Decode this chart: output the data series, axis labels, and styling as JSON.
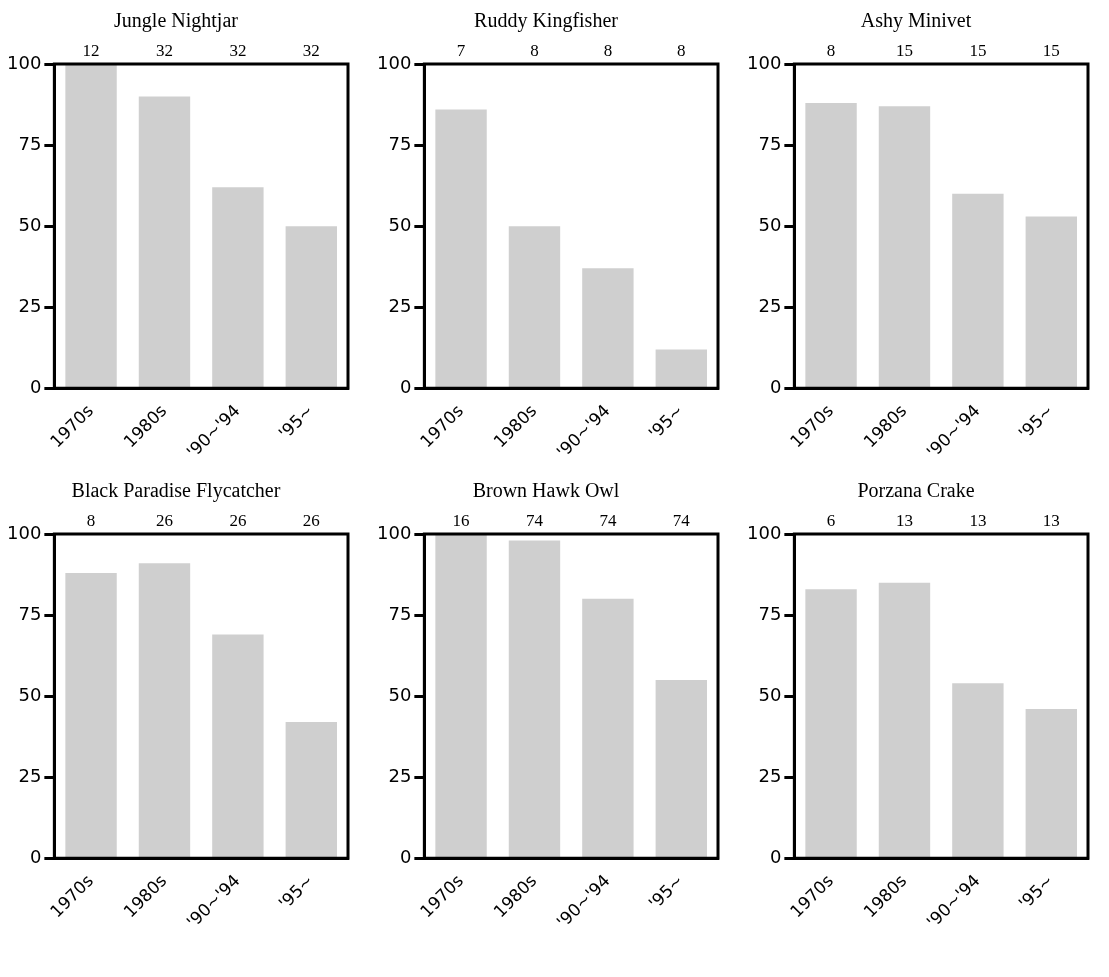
{
  "chart_data": [
    {
      "type": "bar",
      "title": "Jungle Nightjar",
      "categories": [
        "1970s",
        "1980s",
        "'90~'94",
        "'95~"
      ],
      "values": [
        100,
        90,
        62,
        50
      ],
      "color": "#cfcfcf",
      "ylim": [
        0,
        100
      ],
      "yticks": [
        0,
        25,
        50,
        75,
        100
      ],
      "grid": false,
      "legend": false,
      "annotations": [
        "12",
        "32",
        "32",
        "32"
      ]
    },
    {
      "type": "bar",
      "title": "Ruddy Kingfisher",
      "categories": [
        "1970s",
        "1980s",
        "'90~'94",
        "'95~"
      ],
      "values": [
        86,
        50,
        37,
        12
      ],
      "color": "#cfcfcf",
      "ylim": [
        0,
        100
      ],
      "yticks": [
        0,
        25,
        50,
        75,
        100
      ],
      "grid": false,
      "legend": false,
      "annotations": [
        "7",
        "8",
        "8",
        "8"
      ]
    },
    {
      "type": "bar",
      "title": "Ashy Minivet",
      "categories": [
        "1970s",
        "1980s",
        "'90~'94",
        "'95~"
      ],
      "values": [
        88,
        87,
        60,
        53
      ],
      "color": "#cfcfcf",
      "ylim": [
        0,
        100
      ],
      "yticks": [
        0,
        25,
        50,
        75,
        100
      ],
      "grid": false,
      "legend": false,
      "annotations": [
        "8",
        "15",
        "15",
        "15"
      ]
    },
    {
      "type": "bar",
      "title": "Black Paradise Flycatcher",
      "categories": [
        "1970s",
        "1980s",
        "'90~'94",
        "'95~"
      ],
      "values": [
        88,
        91,
        69,
        42
      ],
      "color": "#cfcfcf",
      "ylim": [
        0,
        100
      ],
      "yticks": [
        0,
        25,
        50,
        75,
        100
      ],
      "grid": false,
      "legend": false,
      "annotations": [
        "8",
        "26",
        "26",
        "26"
      ]
    },
    {
      "type": "bar",
      "title": "Brown Hawk Owl",
      "categories": [
        "1970s",
        "1980s",
        "'90~'94",
        "'95~"
      ],
      "values": [
        100,
        98,
        80,
        55
      ],
      "color": "#cfcfcf",
      "ylim": [
        0,
        100
      ],
      "yticks": [
        0,
        25,
        50,
        75,
        100
      ],
      "grid": false,
      "legend": false,
      "annotations": [
        "16",
        "74",
        "74",
        "74"
      ]
    },
    {
      "type": "bar",
      "title": "Porzana Crake",
      "categories": [
        "1970s",
        "1980s",
        "'90~'94",
        "'95~"
      ],
      "values": [
        83,
        85,
        54,
        46
      ],
      "color": "#cfcfcf",
      "ylim": [
        0,
        100
      ],
      "yticks": [
        0,
        25,
        50,
        75,
        100
      ],
      "grid": false,
      "legend": false,
      "annotations": [
        "6",
        "13",
        "13",
        "13"
      ]
    }
  ]
}
